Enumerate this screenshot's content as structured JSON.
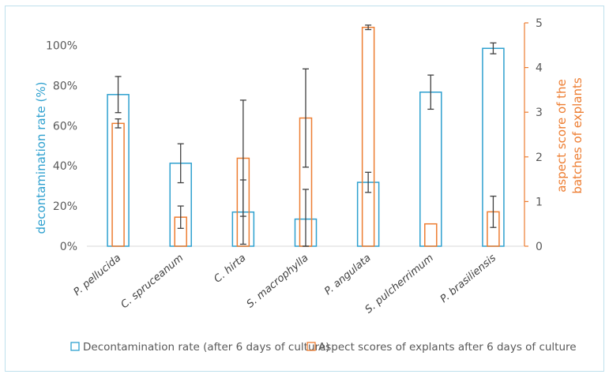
{
  "chart_data": {
    "type": "bar",
    "categories": [
      "P. pellucida",
      "C. spruceanum",
      "C. hirta",
      "S. macrophylla",
      "P. angulata",
      "S. pulcherrimum",
      "P. brasiliensis"
    ],
    "series": [
      {
        "name": "Decontamination rate (after 6 days of culture)",
        "axis": "left",
        "color": "#2ea0cf",
        "values": [
          75.5,
          41.3,
          17.0,
          13.5,
          31.8,
          76.7,
          98.5
        ],
        "errors": [
          9.0,
          9.7,
          16.0,
          14.8,
          5.0,
          8.5,
          2.7
        ]
      },
      {
        "name": "Aspect scores of explants after 6 days of culture",
        "axis": "right",
        "color": "#ed7d31",
        "values": [
          2.75,
          0.65,
          1.97,
          2.87,
          4.9,
          0.5,
          0.77
        ],
        "errors": [
          0.1,
          0.25,
          1.3,
          1.1,
          0.05,
          0.0,
          0.35
        ]
      }
    ],
    "ylabel_left": "decontamination rate (%)",
    "ylabel_right_line1": "aspect score of the",
    "ylabel_right_line2": "batches of explants",
    "ylim_left": [
      0,
      110
    ],
    "yticks_left": [
      "0%",
      "20%",
      "40%",
      "60%",
      "80%",
      "100%"
    ],
    "yticks_left_values": [
      0,
      20,
      40,
      60,
      80,
      100
    ],
    "ylim_right": [
      0,
      5
    ],
    "yticks_right": [
      "0",
      "1",
      "2",
      "3",
      "4",
      "5"
    ],
    "yticks_right_values": [
      0,
      1,
      2,
      3,
      4,
      5
    ],
    "legend_position": "bottom",
    "grid": false
  }
}
